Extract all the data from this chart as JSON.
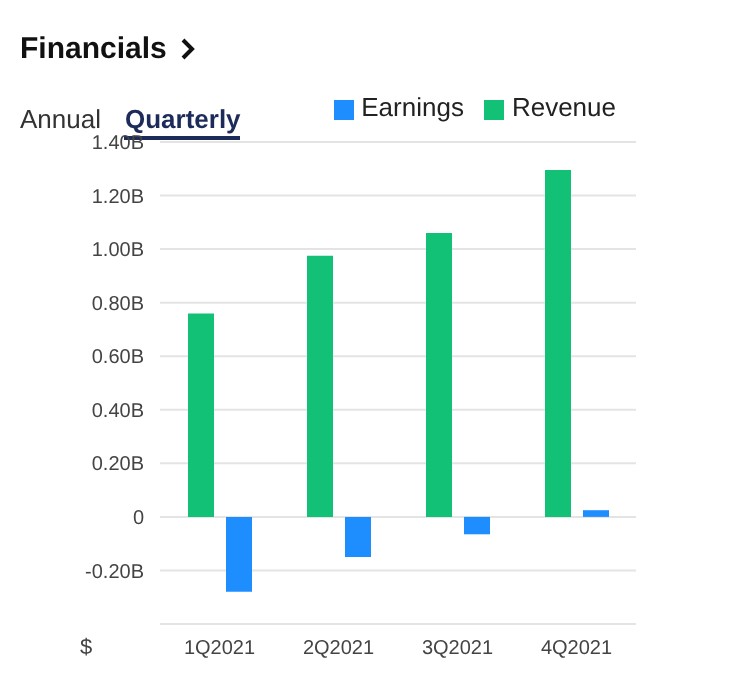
{
  "chart_data": {
    "type": "bar",
    "title": "Financials",
    "xlabel": "$",
    "annotations": [
      "Annual",
      "Quarterly"
    ],
    "categories": [
      "1Q2021",
      "2Q2021",
      "3Q2021",
      "4Q2021"
    ],
    "series": [
      {
        "name": "Revenue",
        "color": "#12c176",
        "values": [
          0.76,
          0.975,
          1.06,
          1.295
        ]
      },
      {
        "name": "Earnings",
        "color": "#1e8eff",
        "values": [
          -0.28,
          -0.15,
          -0.065,
          0.025
        ]
      }
    ],
    "ylim": [
      -0.4,
      1.4
    ],
    "yticks": [
      {
        "value": -0.2,
        "label": "-0.20B"
      },
      {
        "value": 0,
        "label": "0"
      },
      {
        "value": 0.2,
        "label": "0.20B"
      },
      {
        "value": 0.4,
        "label": "0.40B"
      },
      {
        "value": 0.6,
        "label": "0.60B"
      },
      {
        "value": 0.8,
        "label": "0.80B"
      },
      {
        "value": 1.0,
        "label": "1.00B"
      },
      {
        "value": 1.2,
        "label": "1.20B"
      },
      {
        "value": 1.4,
        "label": "1.40B"
      }
    ],
    "grid": "y",
    "legend": "top right"
  }
}
